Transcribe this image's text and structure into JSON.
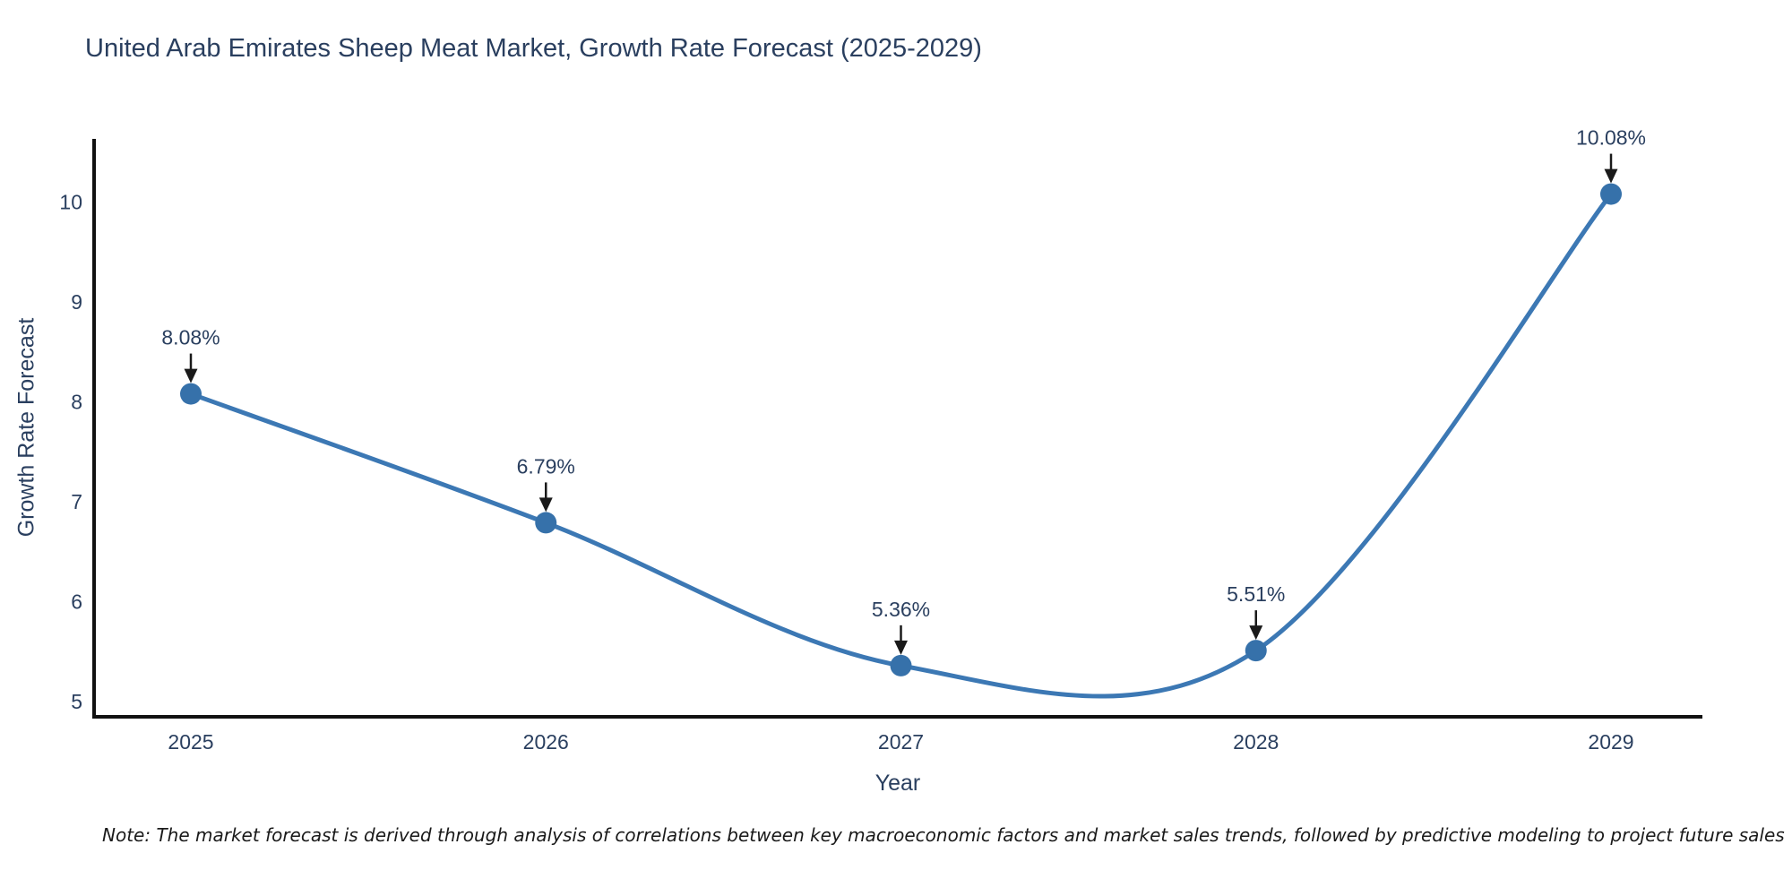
{
  "chart_data": {
    "type": "line",
    "title": "United Arab Emirates Sheep Meat Market, Growth Rate Forecast (2025-2029)",
    "xlabel": "Year",
    "ylabel": "Growth Rate Forecast",
    "x": [
      2025,
      2026,
      2027,
      2028,
      2029
    ],
    "series": [
      {
        "name": "Growth Rate Forecast",
        "values": [
          8.08,
          6.79,
          5.36,
          5.51,
          10.08
        ]
      }
    ],
    "point_labels": [
      "8.08%",
      "6.79%",
      "5.36%",
      "5.51%",
      "10.08%"
    ],
    "y_ticks": [
      5,
      6,
      7,
      8,
      9,
      10
    ],
    "ylim": [
      4.85,
      10.63
    ],
    "line_shape": "spline",
    "grid": false,
    "legend": "none",
    "colors": {
      "line": "#3c78b4",
      "marker": "#3671aa",
      "axis": "#111111",
      "text": "#2a3f5f",
      "arrow": "#1a1a1a"
    },
    "note": "Note: The market forecast is derived through analysis of correlations between key macroeconomic factors and market sales trends, followed by predictive modeling to project future sales"
  }
}
